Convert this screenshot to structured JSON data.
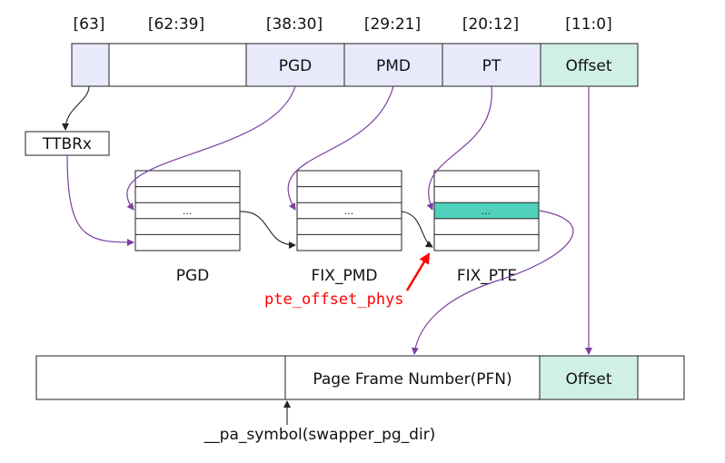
{
  "bit_labels": [
    "[63]",
    "[62:39]",
    "[38:30]",
    "[29:21]",
    "[20:12]",
    "[11:0]"
  ],
  "va_fields": [
    "",
    "",
    "PGD",
    "PMD",
    "PT",
    "Offset"
  ],
  "ttbr_label": "TTBRx",
  "tables": [
    {
      "name": "PGD",
      "entry": "..."
    },
    {
      "name": "FIX_PMD",
      "entry": "..."
    },
    {
      "name": "FIX_PTE",
      "entry": "..."
    }
  ],
  "red_label": "pte_offset_phys",
  "pa_fields": {
    "pfn": "Page Frame Number(PFN)",
    "offset": "Offset"
  },
  "bottom_label": "__pa_symbol(swapper_pg_dir)",
  "colors": {
    "light_blue": "#e8eafc",
    "mint": "#d0f0e6",
    "teal": "#4fd1bb",
    "purple": "#7a3fa0",
    "red": "#ff0000"
  }
}
